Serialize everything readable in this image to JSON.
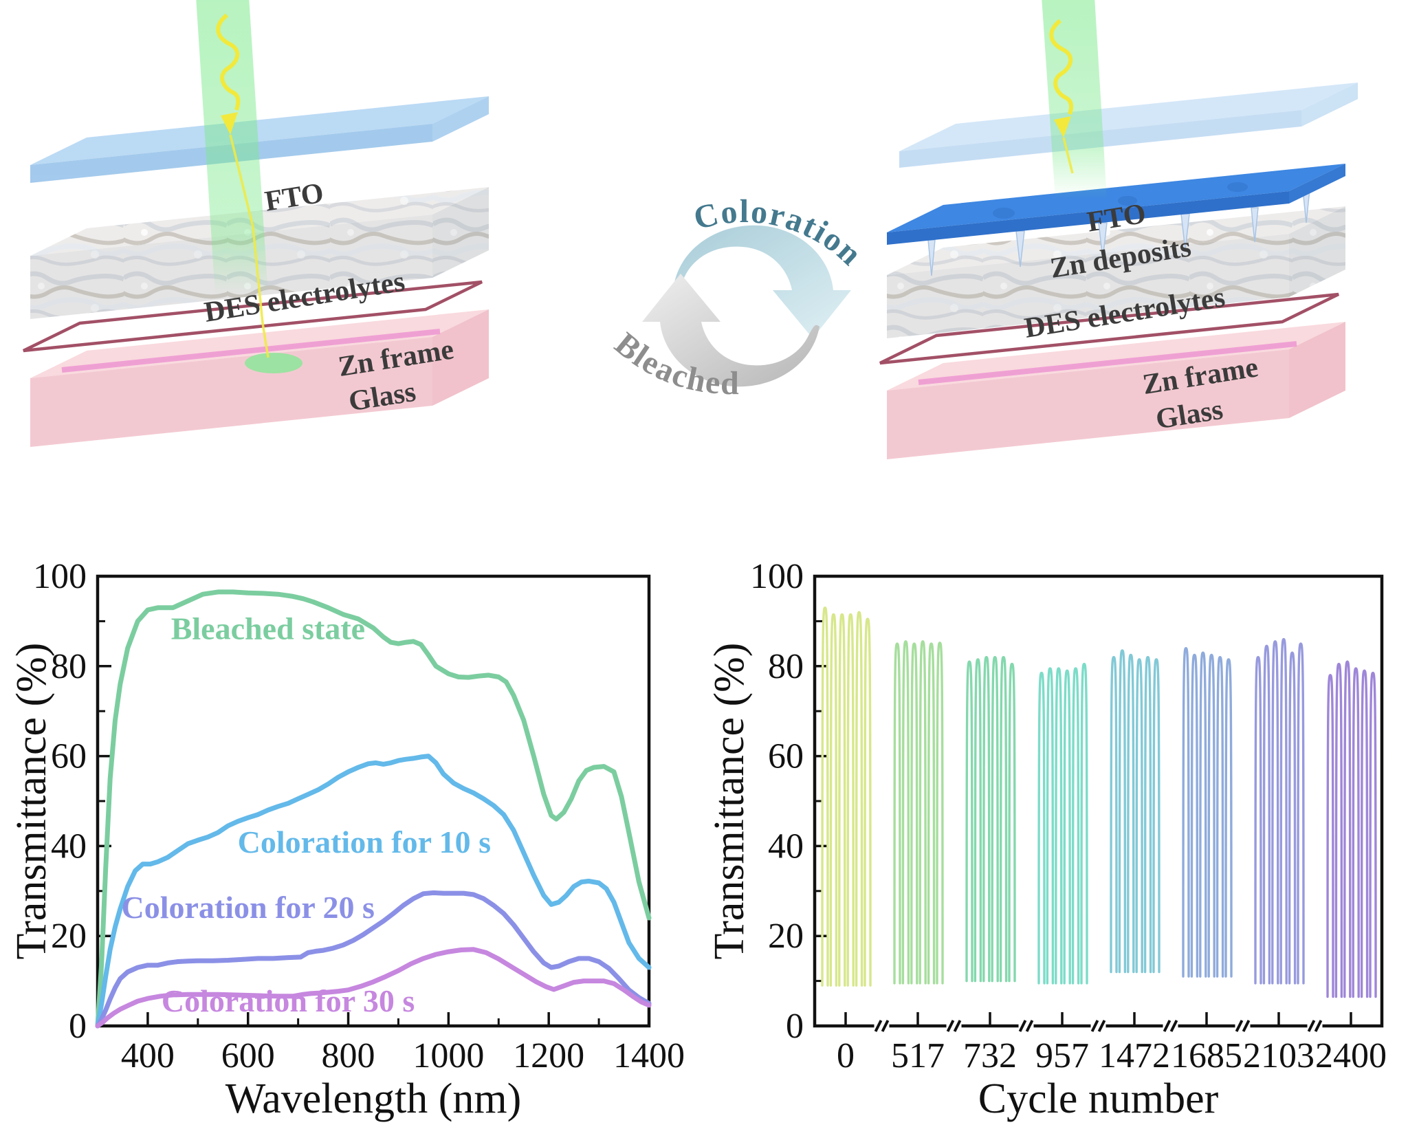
{
  "figure": {
    "background": "#ffffff"
  },
  "schematic": {
    "left": {
      "name": "bleached-device",
      "labels": [
        "FTO",
        "DES electrolytes",
        "Zn frame",
        "Glass"
      ]
    },
    "right": {
      "name": "colored-device",
      "labels": [
        "FTO",
        "Zn deposits",
        "DES electrolytes",
        "Zn frame",
        "Glass"
      ]
    },
    "cycle": {
      "coloration": "Coloration",
      "bleached": "Bleached",
      "coloration_color": "#44798e",
      "bleached_color": "#8d8d8d"
    }
  },
  "palette": {
    "fto_fill": "#b2d5f3",
    "zn_deposit_fill": "#3e87e2",
    "electrolyte_base": "#eeeceb",
    "glass_fill": "#f8d7dc",
    "zn_frame_stroke": "#a25066",
    "zn_frame_stripe": "#ef9ad2",
    "beam_green": "#7ce98c",
    "beam_arrow_yellow": "#f2e93c",
    "bleached_curve": "#7bcd9f",
    "c10_curve": "#63b9e9",
    "c20_curve": "#8b90e6",
    "c30_curve": "#c687df"
  },
  "chart_data": [
    {
      "id": "spectra",
      "type": "line",
      "title": "",
      "xlabel": "Wavelength (nm)",
      "ylabel": "Transmittance (%)",
      "xlim": [
        300,
        1400
      ],
      "ylim": [
        0,
        100
      ],
      "grid": false,
      "legend": "inline-labels",
      "x_major_ticks": [
        400,
        600,
        800,
        1000,
        1200,
        1400
      ],
      "x_minor_ticks": [
        500,
        700,
        900,
        1100,
        1300
      ],
      "y_major_ticks": [
        0,
        20,
        40,
        60,
        80,
        100
      ],
      "y_minor_ticks": [
        10,
        30,
        50,
        70,
        90
      ],
      "series": [
        {
          "name": "Bleached state",
          "color": "#7bcd9f",
          "label_x": 640,
          "label_y": 86,
          "x": [
            300,
            308,
            316,
            325,
            335,
            345,
            360,
            380,
            400,
            420,
            450,
            480,
            510,
            540,
            570,
            600,
            630,
            660,
            690,
            710,
            730,
            760,
            790,
            820,
            850,
            870,
            885,
            900,
            915,
            930,
            945,
            960,
            975,
            1000,
            1020,
            1040,
            1060,
            1080,
            1100,
            1115,
            1130,
            1150,
            1170,
            1190,
            1205,
            1215,
            1230,
            1245,
            1260,
            1275,
            1290,
            1310,
            1330,
            1345,
            1360,
            1380,
            1400
          ],
          "y": [
            0,
            14,
            35,
            55,
            68,
            76,
            84,
            90,
            92.5,
            93,
            93,
            94.5,
            96,
            96.5,
            96.5,
            96.3,
            96.2,
            96,
            95.5,
            95,
            94.3,
            93,
            91.5,
            90.5,
            88.5,
            86.5,
            85.3,
            85,
            85.3,
            85.5,
            84.8,
            82.5,
            80,
            78.3,
            77.6,
            77.5,
            77.8,
            78,
            77.6,
            76.5,
            73.5,
            68,
            60,
            51.5,
            46.8,
            46,
            47.5,
            50.5,
            54.5,
            56.8,
            57.5,
            57.7,
            56.5,
            51,
            43,
            32,
            24
          ]
        },
        {
          "name": "Coloration for 10 s",
          "color": "#63b9e9",
          "label_x": 832,
          "label_y": 38.5,
          "x": [
            300,
            308,
            316,
            325,
            335,
            345,
            360,
            375,
            390,
            405,
            420,
            440,
            460,
            480,
            500,
            520,
            540,
            560,
            580,
            600,
            620,
            640,
            660,
            680,
            700,
            720,
            740,
            760,
            780,
            800,
            820,
            840,
            855,
            870,
            885,
            900,
            915,
            930,
            945,
            960,
            975,
            990,
            1010,
            1030,
            1050,
            1070,
            1090,
            1110,
            1130,
            1150,
            1170,
            1190,
            1205,
            1220,
            1235,
            1250,
            1265,
            1280,
            1300,
            1315,
            1330,
            1345,
            1360,
            1380,
            1400
          ],
          "y": [
            0,
            5,
            11,
            17,
            22,
            26,
            31,
            34.5,
            36,
            36,
            36.5,
            37.5,
            39,
            40.5,
            41.3,
            42,
            43,
            44.5,
            45.5,
            46.3,
            47,
            48,
            48.8,
            49.5,
            50.5,
            51.5,
            52.5,
            53.8,
            55.3,
            56.5,
            57.5,
            58.3,
            58.5,
            58.2,
            58.5,
            59,
            59.3,
            59.5,
            59.8,
            60,
            58.5,
            56,
            54,
            52.8,
            51.8,
            50.5,
            49,
            47,
            43.5,
            38.5,
            33.5,
            29,
            27,
            27.5,
            29,
            31,
            32,
            32.2,
            31.8,
            30.5,
            27.5,
            23,
            18.5,
            15,
            13
          ]
        },
        {
          "name": "Coloration for 20 s",
          "color": "#8b90e6",
          "label_x": 600,
          "label_y": 24,
          "x": [
            300,
            308,
            316,
            325,
            335,
            345,
            360,
            380,
            400,
            420,
            440,
            460,
            480,
            500,
            530,
            560,
            590,
            620,
            650,
            680,
            705,
            720,
            735,
            750,
            770,
            790,
            810,
            830,
            850,
            870,
            890,
            910,
            930,
            950,
            970,
            990,
            1010,
            1030,
            1050,
            1070,
            1090,
            1110,
            1130,
            1150,
            1170,
            1190,
            1205,
            1220,
            1240,
            1260,
            1280,
            1300,
            1320,
            1340,
            1360,
            1380,
            1400
          ],
          "y": [
            0,
            1.5,
            3.5,
            6,
            8.5,
            10.5,
            12,
            13,
            13.5,
            13.5,
            14,
            14.3,
            14.4,
            14.5,
            14.5,
            14.6,
            14.8,
            15,
            15,
            15.2,
            15.3,
            16.3,
            16.6,
            16.8,
            17.3,
            18,
            19,
            20.3,
            21.8,
            23.3,
            25,
            26.8,
            28.3,
            29.4,
            29.6,
            29.5,
            29.5,
            29.5,
            29.2,
            28.3,
            26.8,
            25,
            22.5,
            19.5,
            16.5,
            14,
            13,
            13.3,
            14.3,
            15,
            15,
            14.3,
            12.8,
            10.5,
            8,
            6.3,
            5
          ]
        },
        {
          "name": "Coloration for 30 s",
          "color": "#c687df",
          "label_x": 680,
          "label_y": 3.2,
          "x": [
            300,
            310,
            320,
            332,
            345,
            360,
            380,
            400,
            425,
            450,
            480,
            510,
            540,
            570,
            600,
            630,
            660,
            690,
            710,
            725,
            740,
            760,
            780,
            800,
            825,
            850,
            875,
            900,
            925,
            950,
            975,
            1000,
            1025,
            1050,
            1075,
            1100,
            1125,
            1150,
            1175,
            1195,
            1210,
            1230,
            1250,
            1270,
            1290,
            1310,
            1330,
            1350,
            1370,
            1385,
            1400
          ],
          "y": [
            0,
            0.8,
            1.8,
            2.8,
            3.7,
            4.5,
            5.5,
            6.1,
            6.6,
            6.9,
            7,
            7,
            7,
            6.9,
            6.8,
            6.7,
            6.6,
            6.6,
            7,
            7.2,
            7.3,
            7.5,
            7.7,
            8,
            8.8,
            9.8,
            11,
            12.3,
            13.8,
            15,
            15.9,
            16.5,
            16.9,
            17,
            16.3,
            14.9,
            13.2,
            11.5,
            9.8,
            8.7,
            8.1,
            8.9,
            9.7,
            10,
            10,
            10,
            9.4,
            8,
            6.4,
            5.3,
            4.6
          ]
        }
      ]
    },
    {
      "id": "cycling",
      "type": "line",
      "title": "",
      "xlabel": "Cycle number",
      "ylabel": "Transmittance (%)",
      "ylim": [
        0,
        100
      ],
      "grid": false,
      "x_axis_breaks": true,
      "y_major_ticks": [
        0,
        20,
        40,
        60,
        80,
        100
      ],
      "y_minor_ticks": [
        10,
        30,
        50,
        70,
        90
      ],
      "groups": [
        {
          "label": "0",
          "color": "#d7e78b",
          "tops": [
            93,
            91.5,
            91.5,
            91.5,
            92,
            90.5
          ],
          "bottom": 9
        },
        {
          "label": "517",
          "color": "#a6de9d",
          "tops": [
            85,
            85.5,
            85,
            85.5,
            85,
            85.2
          ],
          "bottom": 9.5
        },
        {
          "label": "732",
          "color": "#84d8ad",
          "tops": [
            81,
            81.5,
            82,
            82,
            82,
            80.5
          ],
          "bottom": 10
        },
        {
          "label": "957",
          "color": "#7cdcc8",
          "tops": [
            78.5,
            79.5,
            79.5,
            79,
            79.5,
            80.5
          ],
          "bottom": 9.5
        },
        {
          "label": "1472",
          "color": "#82c9d6",
          "tops": [
            82,
            83.5,
            82.5,
            81.5,
            82,
            81.5
          ],
          "bottom": 12
        },
        {
          "label": "1685",
          "color": "#8fabdc",
          "tops": [
            84,
            82.5,
            83,
            82.5,
            82,
            81.5
          ],
          "bottom": 11
        },
        {
          "label": "2103",
          "color": "#979add",
          "tops": [
            82,
            84.5,
            85.5,
            86,
            83,
            85
          ],
          "bottom": 9.5
        },
        {
          "label": "2400",
          "color": "#9e86d8",
          "tops": [
            78,
            80.5,
            81,
            79.5,
            79,
            78.5
          ],
          "bottom": 6.5
        }
      ]
    }
  ]
}
